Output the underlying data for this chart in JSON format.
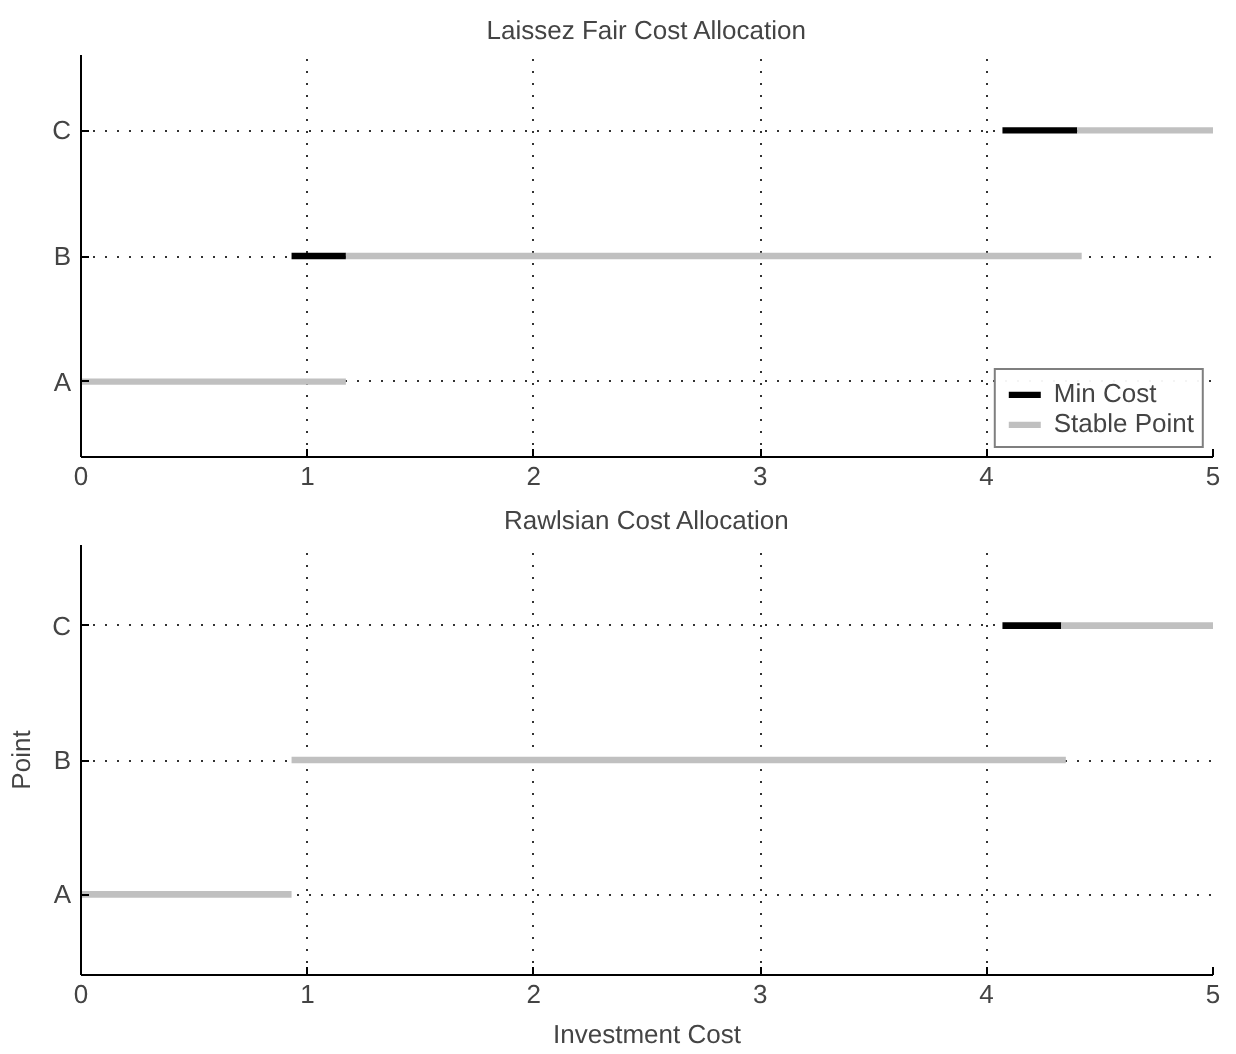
{
  "chart_data": [
    {
      "type": "bar",
      "orientation": "horizontal",
      "title": "Laissez Fair Cost Allocation",
      "categories": [
        "C",
        "B",
        "A"
      ],
      "xlim": [
        0,
        5
      ],
      "xticks": [
        0,
        1,
        2,
        3,
        4,
        5
      ],
      "grid": true,
      "legend": "bottom right",
      "series": [
        {
          "name": "Min Cost",
          "color": "#000000",
          "base": [
            4.07,
            0.93,
            null
          ],
          "values": [
            0.33,
            0.24,
            null
          ]
        },
        {
          "name": "Stable Point",
          "color": "#c0c0c0",
          "base": [
            4.4,
            1.17,
            0
          ],
          "values": [
            0.6,
            3.25,
            1.17
          ]
        }
      ]
    },
    {
      "type": "bar",
      "orientation": "horizontal",
      "title": "Rawlsian Cost Allocation",
      "xlabel": "Investment Cost",
      "ylabel": "Point",
      "categories": [
        "C",
        "B",
        "A"
      ],
      "xlim": [
        0,
        5
      ],
      "xticks": [
        0,
        1,
        2,
        3,
        4,
        5
      ],
      "grid": true,
      "series": [
        {
          "color": "#000000",
          "base": [
            4.07,
            null,
            null
          ],
          "values": [
            0.26,
            null,
            null
          ]
        },
        {
          "color": "#c0c0c0",
          "base": [
            4.33,
            0.93,
            0
          ],
          "values": [
            0.67,
            3.42,
            0.93
          ]
        }
      ]
    }
  ]
}
